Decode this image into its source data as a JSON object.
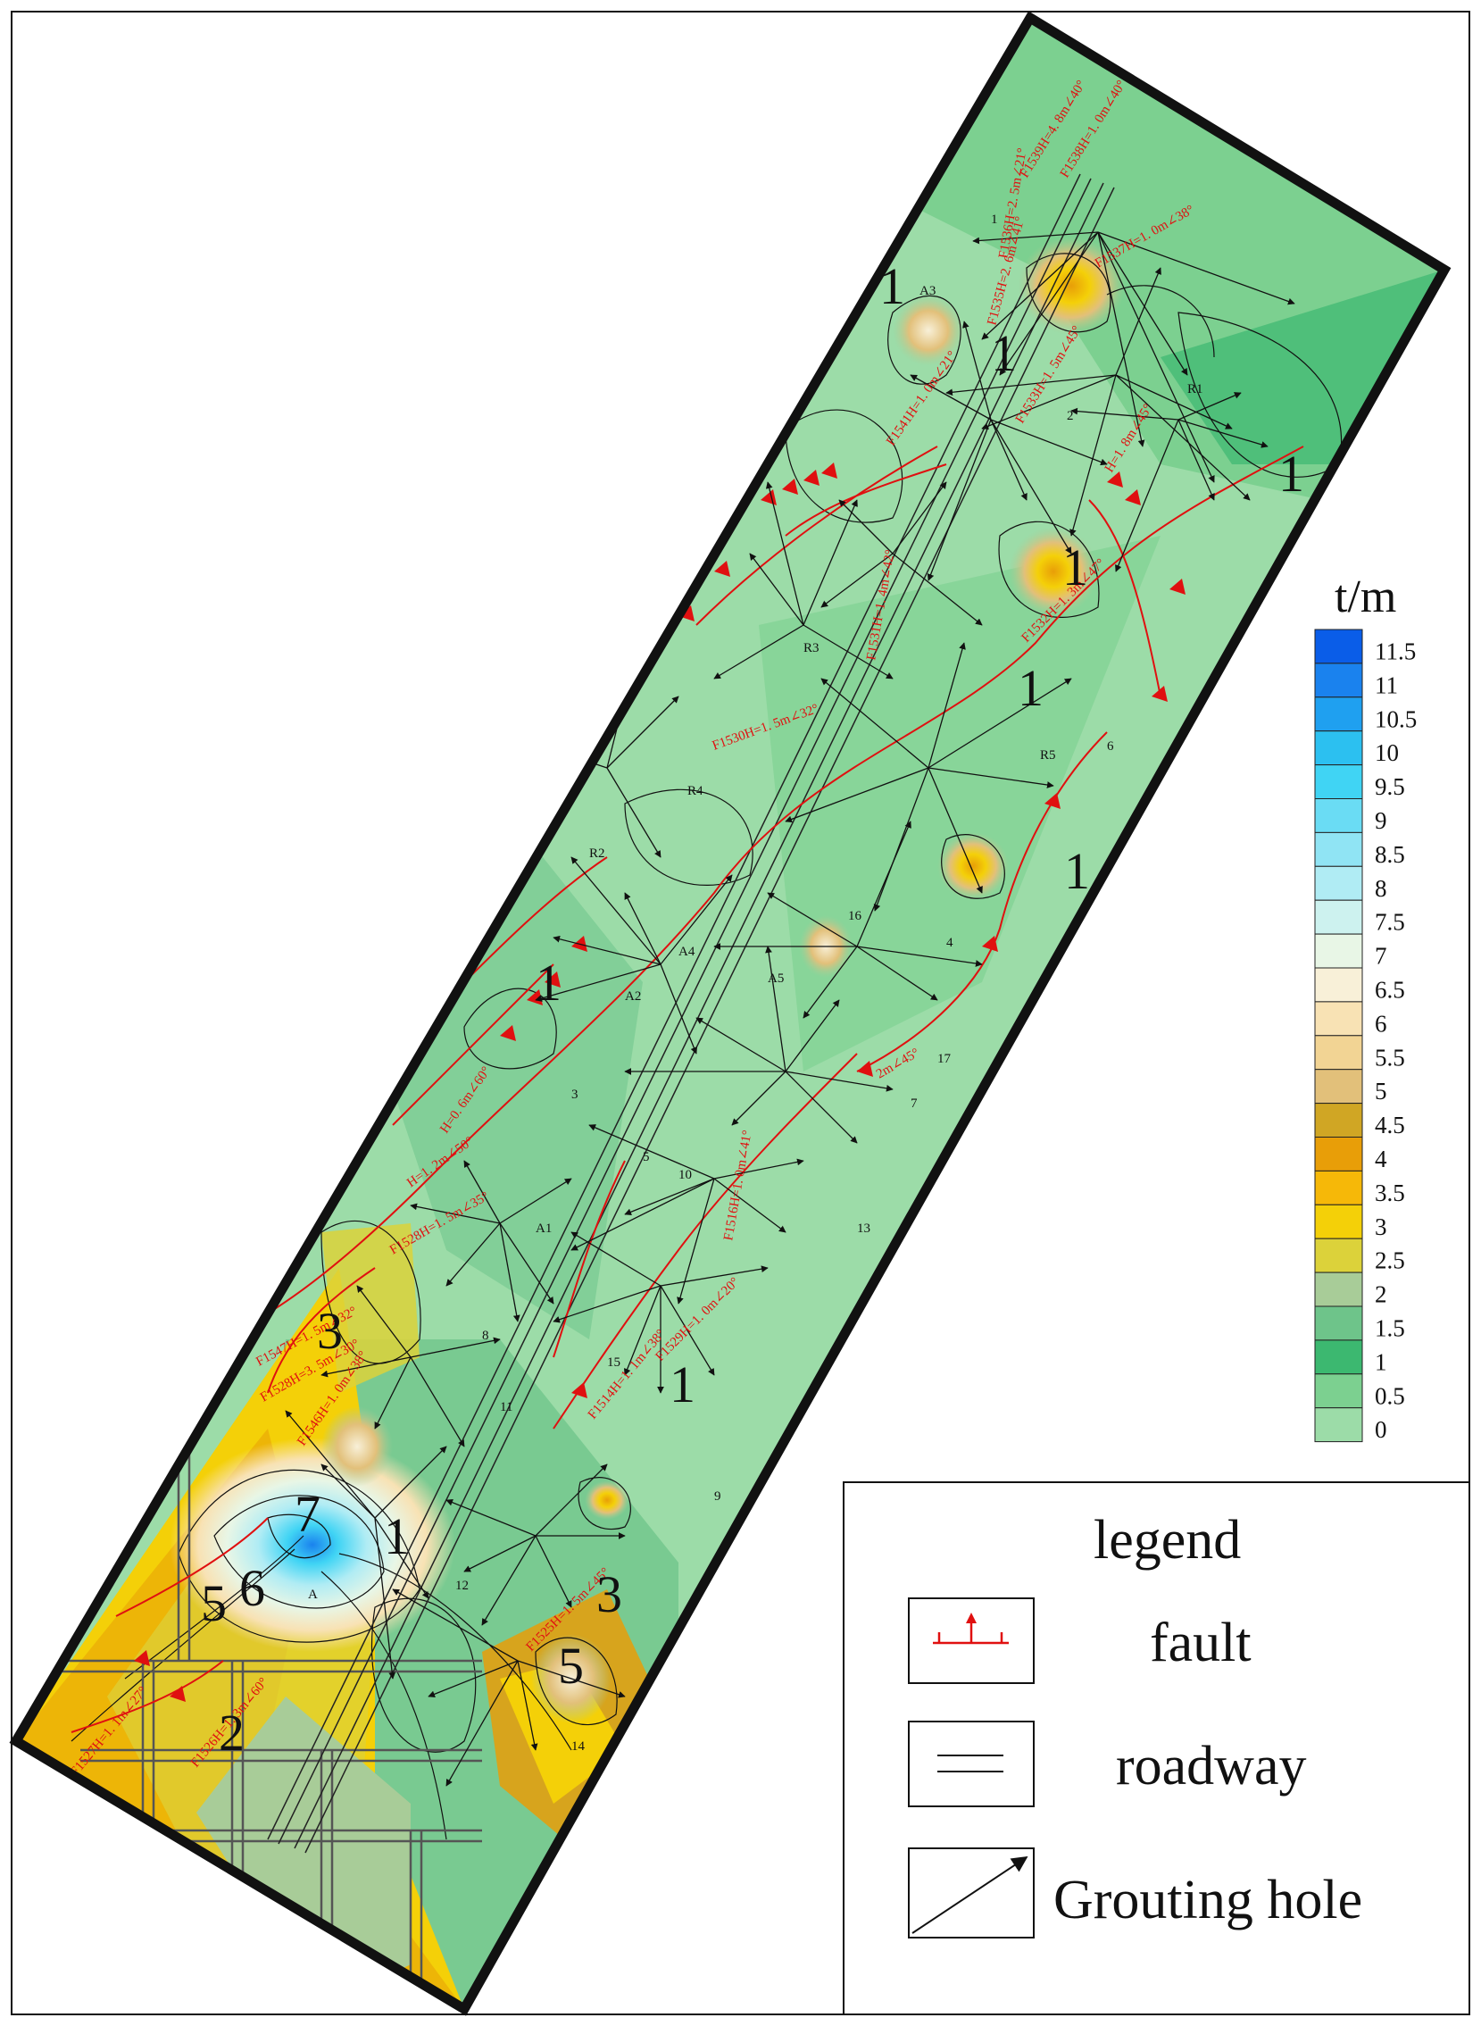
{
  "colorbar": {
    "unit": "t/m",
    "ticks": [
      "11.5",
      "11",
      "10.5",
      "10",
      "9.5",
      "9",
      "8.5",
      "8",
      "7.5",
      "7",
      "6.5",
      "6",
      "5.5",
      "5",
      "4.5",
      "4",
      "3.5",
      "3",
      "2.5",
      "2",
      "1.5",
      "1",
      "0.5",
      "0"
    ],
    "colors": [
      "#0a5de8",
      "#1a82ee",
      "#1fa0f0",
      "#2cc0f0",
      "#40d4f4",
      "#6adcf4",
      "#90e4f4",
      "#b0ecf4",
      "#cdf2ef",
      "#e8f6e6",
      "#f8f0d8",
      "#f8e2b4",
      "#f2d494",
      "#e2c07a",
      "#d0a624",
      "#e89e08",
      "#f6b808",
      "#f4d008",
      "#dcd23a",
      "#a8cc98",
      "#6ec48a",
      "#3cb870",
      "#7cd090",
      "#9cdca8"
    ]
  },
  "legend": {
    "title": "legend",
    "items": [
      {
        "label": "fault",
        "symbol": "fault-symbol"
      },
      {
        "label": "roadway",
        "symbol": "roadway-symbol"
      },
      {
        "label": "Grouting hole",
        "symbol": "grouting-hole-symbol"
      }
    ]
  },
  "contour_labels": [
    "1",
    "1",
    "1",
    "1",
    "1",
    "1",
    "7",
    "5",
    "6",
    "5",
    "3",
    "3",
    "2",
    "1",
    "1",
    "1",
    "1"
  ],
  "faults": [
    "F1539H=4. 8m∠40°",
    "F1538H=1. 0m∠40°",
    "F1537H=1. 0m∠38°",
    "F1536H=2. 5m∠21°",
    "F1535H=2. 6m∠41°",
    "F1541H=1. 0m∠21°",
    "F1533H=1. 5m∠45°",
    "H=1. 8m∠45°",
    "F1531H=1. 4m∠42°",
    "F1530H=1. 5m∠32°",
    "F1532H=1. 3m∠47°",
    "H=0. 6m∠60°",
    "H=1. 2m∠50°",
    "F1528H=1. 5m∠35°",
    "F1547H=1. 5m∠32°",
    "F1528H=3. 5m∠30°",
    "F1546H=1. 0m∠38°",
    "F1516H=1. 0m∠41°",
    "F1514H=1. 1m∠38°",
    "F1526H=1. 3m∠60°",
    "F1527H=1. 1m∠27°",
    "F1525H=1. 5m∠45°",
    "2m∠45°",
    "F1529H=1. 0m∠20°"
  ],
  "hole_labels": [
    "A3",
    "R1",
    "R2",
    "R3",
    "R4",
    "R5",
    "A1",
    "A2",
    "A4",
    "A5",
    "A",
    "1",
    "2",
    "3",
    "4",
    "5",
    "6",
    "7",
    "8",
    "9",
    "10",
    "11",
    "12",
    "13",
    "14",
    "15",
    "16",
    "17"
  ]
}
